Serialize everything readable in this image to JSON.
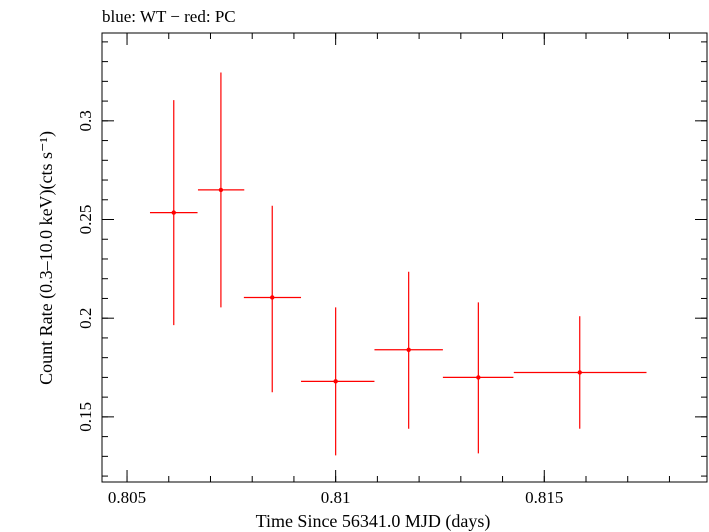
{
  "chart_data": {
    "type": "scatter",
    "title": "blue: WT − red: PC",
    "xlabel": "Time Since 56341.0 MJD (days)",
    "ylabel": "Count Rate (0.3–10.0 keV)(cts s⁻¹)",
    "xlim": [
      0.8044,
      0.8189
    ],
    "ylim": [
      0.117,
      0.3445
    ],
    "xticks": [
      {
        "value": 0.805,
        "label": "0.805"
      },
      {
        "value": 0.81,
        "label": "0.81"
      },
      {
        "value": 0.815,
        "label": "0.815"
      }
    ],
    "yticks": [
      {
        "value": 0.15,
        "label": "0.15"
      },
      {
        "value": 0.2,
        "label": "0.2"
      },
      {
        "value": 0.25,
        "label": "0.25"
      },
      {
        "value": 0.3,
        "label": "0.3"
      }
    ],
    "xminor_step": 0.001,
    "yminor_step": 0.01,
    "grid": false,
    "series": [
      {
        "name": "PC",
        "color": "#ff0000",
        "points": [
          {
            "x": 0.80612,
            "xlo": 0.80555,
            "xhi": 0.80669,
            "y": 0.2535,
            "ylo": 0.1965,
            "yhi": 0.3105
          },
          {
            "x": 0.80725,
            "xlo": 0.8067,
            "xhi": 0.80781,
            "y": 0.265,
            "ylo": 0.2055,
            "yhi": 0.3245
          },
          {
            "x": 0.80848,
            "xlo": 0.8078,
            "xhi": 0.80917,
            "y": 0.2105,
            "ylo": 0.1625,
            "yhi": 0.257
          },
          {
            "x": 0.81,
            "xlo": 0.80917,
            "xhi": 0.81093,
            "y": 0.168,
            "ylo": 0.1305,
            "yhi": 0.2055
          },
          {
            "x": 0.81175,
            "xlo": 0.81093,
            "xhi": 0.81257,
            "y": 0.184,
            "ylo": 0.144,
            "yhi": 0.2235
          },
          {
            "x": 0.81342,
            "xlo": 0.81257,
            "xhi": 0.81426,
            "y": 0.17,
            "ylo": 0.1315,
            "yhi": 0.208
          },
          {
            "x": 0.81585,
            "xlo": 0.81427,
            "xhi": 0.81745,
            "y": 0.1725,
            "ylo": 0.144,
            "yhi": 0.201
          }
        ]
      }
    ]
  }
}
